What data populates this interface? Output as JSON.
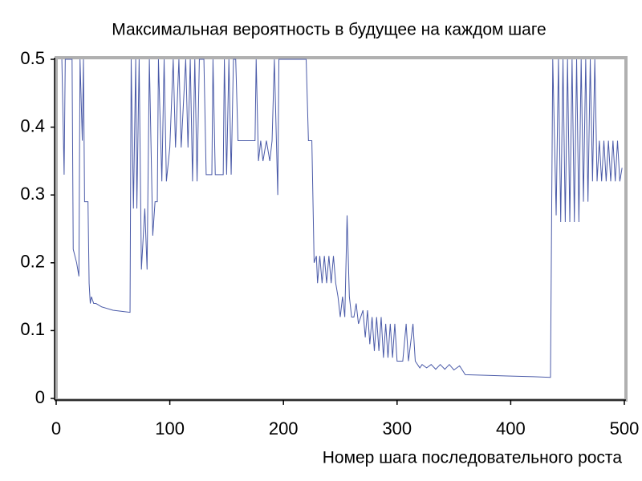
{
  "chart_data": {
    "type": "line",
    "title": "Максимальная вероятность в будущее на каждом шаге",
    "x_label": "Номер шага последовательного роста",
    "xlim": [
      0,
      500
    ],
    "xticks": [
      0,
      100,
      200,
      300,
      400,
      500
    ],
    "ylim": [
      0,
      0.5
    ],
    "yticks": [
      0,
      0.1,
      0.2,
      0.3,
      0.4,
      0.5
    ],
    "grid": false,
    "series": [
      {
        "name": null,
        "color": "#4a5aa8",
        "x": [
          5,
          7,
          8,
          14,
          15,
          18,
          20,
          21,
          23,
          24,
          25,
          28,
          29,
          30,
          31,
          33,
          35,
          40,
          50,
          60,
          65,
          66,
          68,
          70,
          71,
          73,
          75,
          78,
          80,
          82,
          85,
          87,
          89,
          90,
          93,
          95,
          97,
          100,
          103,
          105,
          108,
          110,
          114,
          116,
          118,
          120,
          122,
          124,
          126,
          130,
          132,
          137,
          138,
          140,
          147,
          148,
          150,
          152,
          154,
          156,
          158,
          160,
          170,
          175,
          176,
          178,
          180,
          182,
          185,
          188,
          190,
          192,
          195,
          196,
          220,
          222,
          225,
          227,
          229,
          230,
          232,
          234,
          236,
          238,
          240,
          242,
          244,
          246,
          248,
          250,
          252,
          254,
          256,
          258,
          260,
          262,
          264,
          266,
          270,
          272,
          274,
          276,
          278,
          280,
          282,
          284,
          286,
          288,
          290,
          292,
          294,
          296,
          298,
          300,
          305,
          308,
          310,
          314,
          316,
          320,
          322,
          326,
          330,
          334,
          338,
          342,
          346,
          350,
          355,
          360,
          380,
          400,
          420,
          435,
          437,
          440,
          442,
          444,
          446,
          448,
          450,
          452,
          454,
          456,
          458,
          460,
          462,
          464,
          466,
          468,
          470,
          472,
          474,
          476,
          478,
          480,
          482,
          484,
          486,
          488,
          490,
          492,
          494,
          496,
          498
        ],
        "values": [
          0.5,
          0.33,
          0.5,
          0.5,
          0.22,
          0.2,
          0.18,
          0.5,
          0.38,
          0.5,
          0.29,
          0.29,
          0.17,
          0.14,
          0.15,
          0.14,
          0.14,
          0.135,
          0.13,
          0.128,
          0.127,
          0.5,
          0.28,
          0.5,
          0.28,
          0.5,
          0.19,
          0.28,
          0.19,
          0.5,
          0.24,
          0.29,
          0.29,
          0.5,
          0.32,
          0.5,
          0.32,
          0.37,
          0.5,
          0.37,
          0.5,
          0.37,
          0.5,
          0.37,
          0.5,
          0.32,
          0.5,
          0.32,
          0.5,
          0.5,
          0.33,
          0.33,
          0.5,
          0.33,
          0.33,
          0.5,
          0.33,
          0.5,
          0.33,
          0.5,
          0.5,
          0.38,
          0.38,
          0.38,
          0.5,
          0.35,
          0.38,
          0.35,
          0.38,
          0.35,
          0.38,
          0.5,
          0.3,
          0.5,
          0.5,
          0.38,
          0.38,
          0.2,
          0.21,
          0.17,
          0.21,
          0.17,
          0.21,
          0.17,
          0.21,
          0.17,
          0.21,
          0.17,
          0.15,
          0.12,
          0.15,
          0.12,
          0.27,
          0.15,
          0.12,
          0.12,
          0.14,
          0.11,
          0.13,
          0.09,
          0.13,
          0.08,
          0.12,
          0.07,
          0.12,
          0.07,
          0.12,
          0.06,
          0.11,
          0.06,
          0.11,
          0.06,
          0.11,
          0.055,
          0.055,
          0.11,
          0.055,
          0.11,
          0.055,
          0.045,
          0.05,
          0.045,
          0.05,
          0.043,
          0.05,
          0.043,
          0.05,
          0.042,
          0.048,
          0.035,
          0.034,
          0.033,
          0.032,
          0.031,
          0.5,
          0.27,
          0.5,
          0.26,
          0.5,
          0.26,
          0.5,
          0.26,
          0.5,
          0.26,
          0.5,
          0.26,
          0.5,
          0.29,
          0.5,
          0.29,
          0.5,
          0.32,
          0.5,
          0.32,
          0.38,
          0.32,
          0.38,
          0.32,
          0.38,
          0.32,
          0.38,
          0.32,
          0.38,
          0.32,
          0.34
        ]
      }
    ]
  }
}
